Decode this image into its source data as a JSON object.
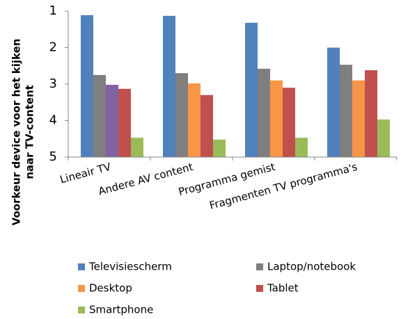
{
  "chart_data": {
    "type": "bar",
    "ylabel": [
      "Voorkeur device voor het kijken",
      "naar TV-content"
    ],
    "categories": [
      "Lineair TV",
      "Andere AV content",
      "Programma gemist",
      "Fragmenten TV programma's"
    ],
    "series": [
      {
        "name": "Televisiescherm",
        "color": "#4f81bd",
        "values": [
          1.11,
          1.13,
          1.32,
          2.0
        ]
      },
      {
        "name": "Laptop/notebook",
        "color": "#7f7f7f",
        "values": [
          2.75,
          2.7,
          2.58,
          2.47
        ]
      },
      {
        "name": "Desktop",
        "color": "#f79646",
        "colors": [
          "#8064a2",
          "#f79646",
          "#f79646",
          "#f79646"
        ],
        "values": [
          3.02,
          2.98,
          2.9,
          2.9
        ]
      },
      {
        "name": "Tablet",
        "color": "#c0504d",
        "values": [
          3.13,
          3.3,
          3.1,
          2.62
        ]
      },
      {
        "name": "Smartphone",
        "color": "#9bbb59",
        "values": [
          4.47,
          4.52,
          4.47,
          3.97
        ]
      }
    ],
    "ylim": [
      1,
      5
    ],
    "yticks": [
      1,
      2,
      3,
      4,
      5
    ],
    "y_inverted": true,
    "grid": false,
    "legend": "bottom"
  }
}
